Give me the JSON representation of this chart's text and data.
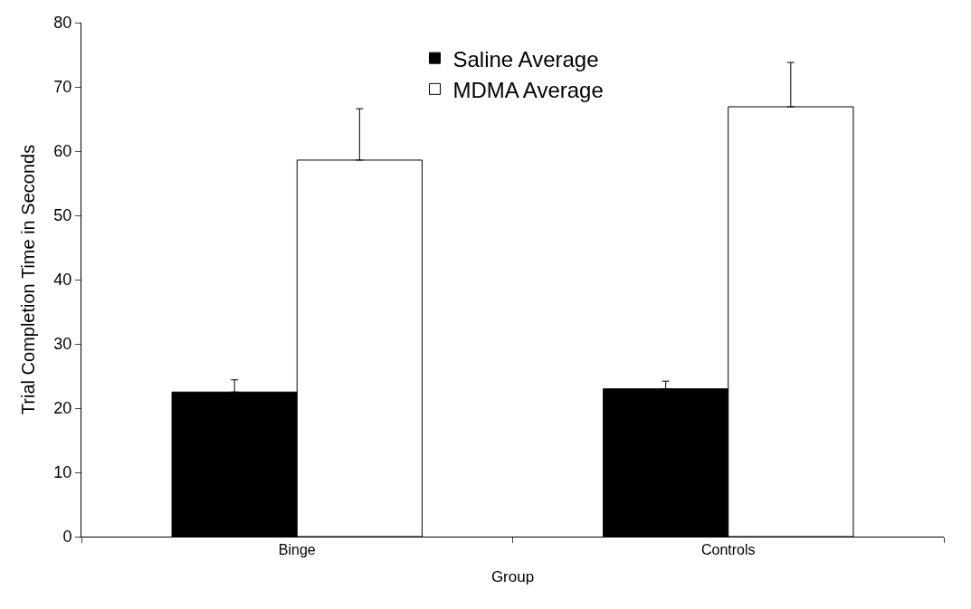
{
  "chart_data": {
    "type": "bar",
    "xlabel": "Group",
    "ylabel": "Trial Completion Time in Seconds",
    "categories": [
      "Binge",
      "Controls"
    ],
    "series": [
      {
        "name": "Saline Average",
        "color": "#000000",
        "values": [
          22.5,
          23.0
        ],
        "errors": [
          [
            22.5,
            24.4
          ],
          [
            23.0,
            24.2
          ]
        ]
      },
      {
        "name": "MDMA Average",
        "color": "#ffffff",
        "values": [
          58.6,
          66.9
        ],
        "errors": [
          [
            58.6,
            66.6
          ],
          [
            66.9,
            73.8
          ]
        ]
      }
    ],
    "ylim": [
      0,
      80
    ],
    "yticks": [
      0,
      10,
      20,
      30,
      40,
      50,
      60,
      70,
      80
    ],
    "legend": "top"
  }
}
